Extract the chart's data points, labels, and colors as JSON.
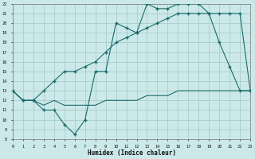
{
  "xlabel": "Humidex (Indice chaleur)",
  "bg_color": "#cce9e9",
  "grid_color": "#aacccc",
  "line_color": "#1a6b6b",
  "xlim": [
    0,
    23
  ],
  "ylim": [
    8,
    22
  ],
  "yticks": [
    8,
    9,
    10,
    11,
    12,
    13,
    14,
    15,
    16,
    17,
    18,
    19,
    20,
    21,
    22
  ],
  "xticks": [
    0,
    1,
    2,
    3,
    4,
    5,
    6,
    7,
    8,
    9,
    10,
    11,
    12,
    13,
    14,
    15,
    16,
    17,
    18,
    19,
    20,
    21,
    22,
    23
  ],
  "line1_x": [
    0,
    1,
    2,
    3,
    4,
    5,
    6,
    7,
    8,
    9,
    10,
    11,
    12,
    13,
    14,
    15,
    16,
    17,
    18,
    19,
    20,
    21,
    22,
    23
  ],
  "line1_y": [
    13,
    12,
    12,
    11,
    11,
    9.5,
    8.5,
    10,
    15,
    15,
    20,
    19.5,
    19,
    22,
    21.5,
    21.5,
    22,
    22,
    22,
    21,
    18,
    15.5,
    13,
    13
  ],
  "line2_x": [
    0,
    1,
    2,
    3,
    4,
    5,
    6,
    7,
    8,
    9,
    10,
    11,
    12,
    13,
    14,
    15,
    16,
    17,
    18,
    19,
    20,
    21,
    22,
    23
  ],
  "line2_y": [
    13,
    12,
    12,
    13,
    14,
    15,
    15,
    15.5,
    16,
    17,
    18,
    18.5,
    19,
    19.5,
    20,
    20.5,
    21,
    21,
    21,
    21,
    21,
    21,
    21,
    13
  ],
  "line3_x": [
    0,
    1,
    2,
    3,
    4,
    5,
    6,
    7,
    8,
    9,
    10,
    11,
    12,
    13,
    14,
    15,
    16,
    17,
    18,
    19,
    20,
    21,
    22,
    23
  ],
  "line3_y": [
    13,
    12,
    12,
    11.5,
    12,
    11.5,
    11.5,
    11.5,
    11.5,
    12,
    12,
    12,
    12,
    12.5,
    12.5,
    12.5,
    13,
    13,
    13,
    13,
    13,
    13,
    13,
    13
  ]
}
